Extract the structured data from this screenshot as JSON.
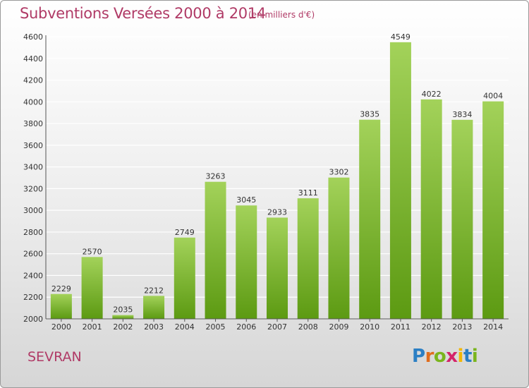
{
  "title": "Subventions Versées 2000 à 2014",
  "subtitle": "(en milliers d'€)",
  "city": "SEVRAN",
  "brand": {
    "letters": [
      "P",
      "r",
      "o",
      "x",
      "i",
      "t",
      "i"
    ],
    "colors": [
      "#2b7fc4",
      "#e06d1d",
      "#7ab51d",
      "#d4236a",
      "#f2b705",
      "#2b7fc4",
      "#7ab51d"
    ]
  },
  "colors": {
    "bar_light": "#a3d25a",
    "bar_dark": "#5c9a12",
    "grid": "#ffffff",
    "text": "#333333",
    "accent": "#b03a66"
  },
  "chart_data": {
    "type": "bar",
    "title": "Subventions Versées 2000 à 2014",
    "subtitle": "(en milliers d'€)",
    "categories": [
      "2000",
      "2001",
      "2002",
      "2003",
      "2004",
      "2005",
      "2006",
      "2007",
      "2008",
      "2009",
      "2010",
      "2011",
      "2012",
      "2013",
      "2014"
    ],
    "values": [
      2229,
      2570,
      2035,
      2212,
      2749,
      3263,
      3045,
      2933,
      3111,
      3302,
      3835,
      4549,
      4022,
      3834,
      4004
    ],
    "ylim": [
      2000,
      4600
    ],
    "yticks": [
      2000,
      2200,
      2400,
      2600,
      2800,
      3000,
      3200,
      3400,
      3600,
      3800,
      4000,
      4200,
      4400,
      4600
    ],
    "grid": true,
    "data_labels": true
  }
}
